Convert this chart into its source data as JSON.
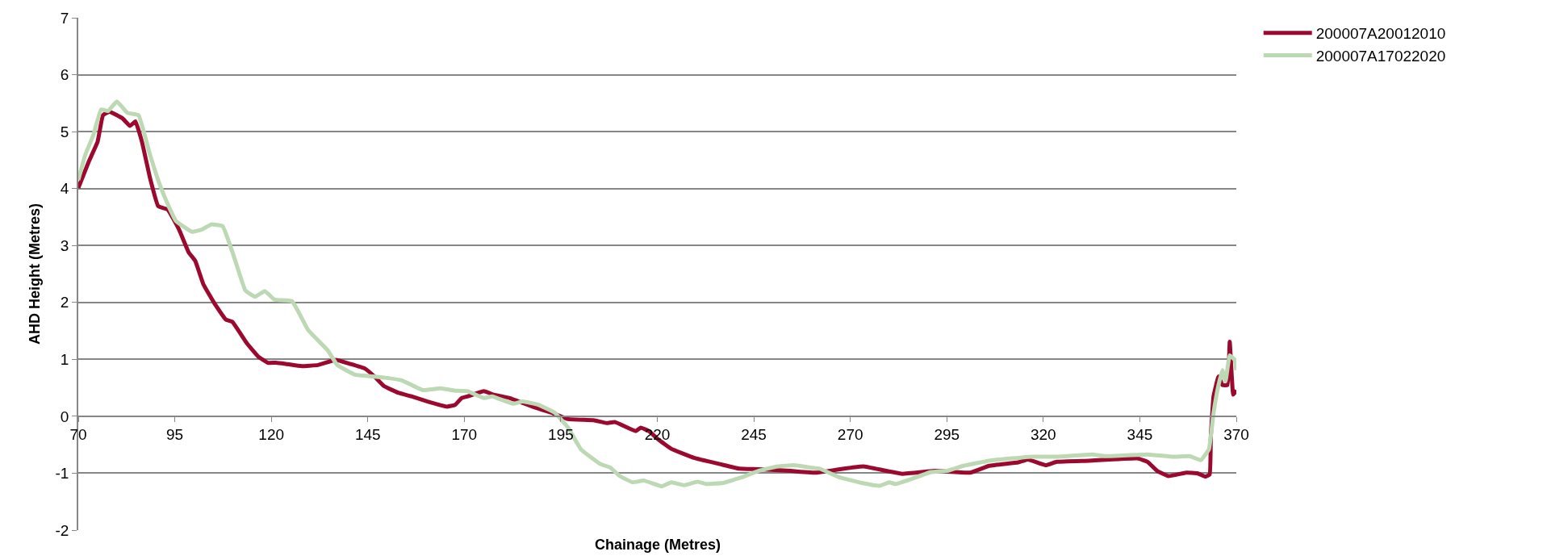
{
  "chart_data": {
    "type": "line",
    "xlabel": "Chainage (Metres)",
    "ylabel": "AHD Height (Metres)",
    "xlim": [
      70,
      370
    ],
    "xticks": [
      70,
      95,
      120,
      145,
      170,
      195,
      220,
      245,
      270,
      295,
      320,
      345,
      370
    ],
    "ylim": [
      -2,
      7
    ],
    "yticks": [
      -2,
      -1,
      0,
      1,
      2,
      3,
      4,
      5,
      6,
      7
    ],
    "grid": "y",
    "legend": "right",
    "marker": "none",
    "line_style": "solid",
    "series": [
      {
        "name": "200007A20012010",
        "color": "#9b0a2e",
        "x": [
          70,
          72.7,
          75.0,
          76.4,
          78.1,
          81.5,
          83.4,
          84.8,
          86.5,
          88.6,
          90.7,
          93.2,
          96.1,
          98.6,
          100.3,
          102.4,
          105.3,
          108.2,
          109.9,
          113.7,
          116.6,
          119.1,
          121.2,
          123.7,
          127.9,
          132.1,
          136.7,
          140.4,
          144.2,
          146.7,
          149.2,
          153.0,
          156.3,
          160.5,
          165.5,
          167.6,
          169.3,
          170.9,
          175.1,
          177.6,
          181.8,
          187.6,
          192.7,
          196.9,
          203.5,
          206.9,
          209.0,
          214.4,
          215.7,
          217.8,
          220.3,
          223.6,
          229.5,
          236.2,
          241.2,
          246.2,
          254.6,
          261.3,
          266.3,
          270.5,
          273.4,
          283.4,
          291.8,
          301.0,
          306.0,
          313.5,
          316.0,
          320.6,
          323.5,
          331.9,
          344.4,
          347.0,
          349.5,
          352.4,
          357.0,
          359.9,
          362.0,
          363.1,
          363.4,
          364.1,
          365.4,
          366.4,
          367.7,
          368.3,
          369.2,
          370.0
        ],
        "values": [
          4.01,
          4.47,
          4.82,
          5.29,
          5.35,
          5.23,
          5.1,
          5.18,
          4.82,
          4.18,
          3.69,
          3.63,
          3.28,
          2.88,
          2.73,
          2.32,
          1.98,
          1.7,
          1.66,
          1.28,
          1.05,
          0.94,
          0.94,
          0.92,
          0.88,
          0.9,
          0.99,
          0.92,
          0.84,
          0.7,
          0.53,
          0.41,
          0.35,
          0.26,
          0.17,
          0.2,
          0.32,
          0.35,
          0.44,
          0.38,
          0.32,
          0.17,
          0.06,
          -0.05,
          -0.07,
          -0.12,
          -0.1,
          -0.26,
          -0.2,
          -0.26,
          -0.41,
          -0.57,
          -0.73,
          -0.84,
          -0.92,
          -0.93,
          -0.96,
          -0.99,
          -0.94,
          -0.9,
          -0.88,
          -1.01,
          -0.96,
          -0.99,
          -0.87,
          -0.81,
          -0.76,
          -0.86,
          -0.8,
          -0.78,
          -0.74,
          -0.8,
          -0.96,
          -1.05,
          -0.99,
          -1.0,
          -1.06,
          -1.02,
          -0.35,
          0.35,
          0.7,
          0.55,
          0.55,
          1.31,
          0.38,
          0.46
        ]
      },
      {
        "name": "200007A17022020",
        "color": "#bcd9b4",
        "x": [
          70,
          71.8,
          73.9,
          75.9,
          77.7,
          80.0,
          82.7,
          85.6,
          88.6,
          91.1,
          93.6,
          95.3,
          99.5,
          102.0,
          104.5,
          107.4,
          110.4,
          113.3,
          115.8,
          118.3,
          120.8,
          125.4,
          129.6,
          134.6,
          137.1,
          141.7,
          146.3,
          150.4,
          153.8,
          159.2,
          163.8,
          167.6,
          170.9,
          175.1,
          177.2,
          182.6,
          185.1,
          189.3,
          193.5,
          196.9,
          200.2,
          205.3,
          207.8,
          210.3,
          213.6,
          216.6,
          221.2,
          223.6,
          227.0,
          230.4,
          232.8,
          237.0,
          242.0,
          246.2,
          251.2,
          255.4,
          259.6,
          262.1,
          267.1,
          273.0,
          277.6,
          280.1,
          281.7,
          285.9,
          290.9,
          295.1,
          299.3,
          306.0,
          311.8,
          316.8,
          323.5,
          332.7,
          336.1,
          347.0,
          353.7,
          357.9,
          360.8,
          362.9,
          364.1,
          365.4,
          366.4,
          367.2,
          368.3,
          369.6,
          370.0
        ],
        "values": [
          4.15,
          4.59,
          4.94,
          5.39,
          5.36,
          5.53,
          5.33,
          5.29,
          4.59,
          4.07,
          3.66,
          3.43,
          3.24,
          3.28,
          3.37,
          3.34,
          2.79,
          2.21,
          2.1,
          2.2,
          2.05,
          2.02,
          1.51,
          1.16,
          0.9,
          0.73,
          0.7,
          0.67,
          0.63,
          0.46,
          0.49,
          0.45,
          0.44,
          0.32,
          0.35,
          0.22,
          0.26,
          0.2,
          0.06,
          -0.2,
          -0.58,
          -0.84,
          -0.9,
          -1.05,
          -1.16,
          -1.13,
          -1.23,
          -1.16,
          -1.21,
          -1.15,
          -1.19,
          -1.17,
          -1.07,
          -0.96,
          -0.88,
          -0.86,
          -0.9,
          -0.92,
          -1.07,
          -1.17,
          -1.22,
          -1.16,
          -1.19,
          -1.1,
          -0.98,
          -0.96,
          -0.87,
          -0.78,
          -0.74,
          -0.71,
          -0.71,
          -0.67,
          -0.7,
          -0.67,
          -0.71,
          -0.7,
          -0.77,
          -0.58,
          0.06,
          0.55,
          0.81,
          0.61,
          1.07,
          0.99,
          0.81
        ]
      }
    ]
  }
}
